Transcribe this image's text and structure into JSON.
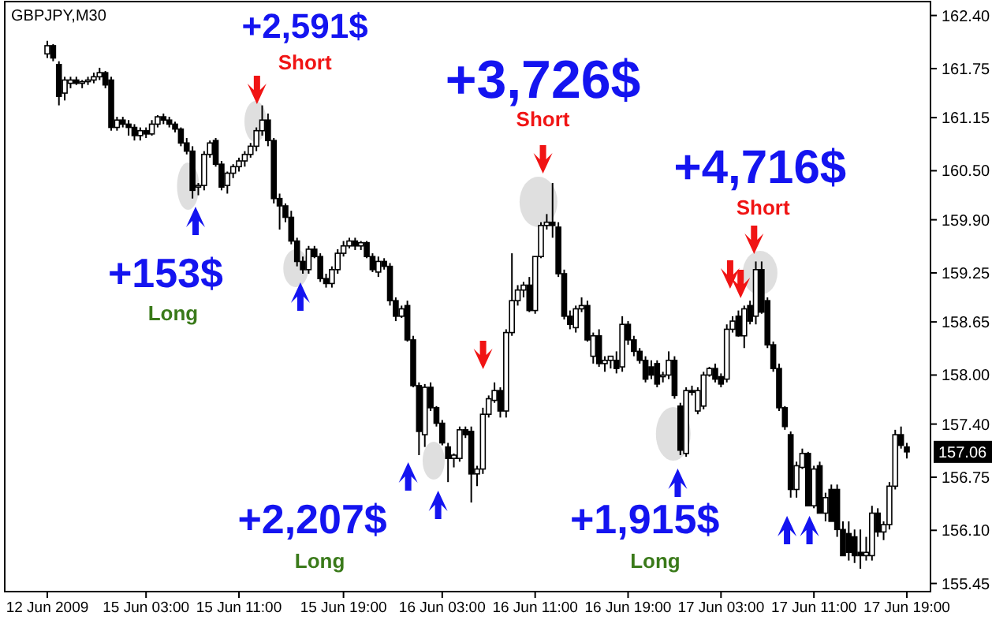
{
  "chart_data": {
    "type": "candlestick",
    "title": "GBPJPY,M30",
    "categories": [
      "12 Jun 2009",
      null,
      null,
      null,
      null,
      null,
      null,
      null,
      null,
      null,
      null,
      null,
      null,
      null,
      null,
      null,
      null,
      "15 Jun 03:00",
      null,
      null,
      null,
      null,
      null,
      null,
      null,
      null,
      null,
      null,
      null,
      null,
      null,
      null,
      null,
      "15 Jun 11:00",
      null,
      null,
      null,
      null,
      null,
      null,
      null,
      null,
      null,
      null,
      null,
      null,
      null,
      null,
      null,
      null,
      null,
      "15 Jun 19:00",
      null,
      null,
      null,
      null,
      null,
      null,
      null,
      null,
      null,
      null,
      null,
      null,
      null,
      null,
      null,
      null,
      "16 Jun 03:00",
      null,
      null,
      null,
      null,
      null,
      null,
      null,
      null,
      null,
      null,
      null,
      null,
      null,
      null,
      null,
      "16 Jun 11:00",
      null,
      null,
      null,
      null,
      null,
      null,
      null,
      null,
      null,
      null,
      null,
      null,
      null,
      null,
      null,
      "16 Jun 19:00",
      null,
      null,
      null,
      null,
      null,
      null,
      null,
      null,
      null,
      null,
      null,
      null,
      null,
      null,
      null,
      "17 Jun 03:00",
      null,
      null,
      null,
      null,
      null,
      null,
      null,
      null,
      null,
      null,
      null,
      null,
      null,
      null,
      null,
      "17 Jun 11:00",
      null,
      null,
      null,
      null,
      null,
      null,
      null,
      null,
      null,
      null,
      null,
      null,
      null,
      null,
      null,
      "17 Jun 19:00"
    ],
    "ohlc": [
      [
        161.93,
        162.09,
        161.88,
        162.03
      ],
      [
        162.03,
        162.05,
        161.84,
        161.88
      ],
      [
        161.8,
        161.84,
        161.3,
        161.41
      ],
      [
        161.45,
        161.65,
        161.36,
        161.61
      ],
      [
        161.57,
        161.65,
        161.51,
        161.61
      ],
      [
        161.61,
        161.65,
        161.55,
        161.57
      ],
      [
        161.57,
        161.61,
        161.51,
        161.59
      ],
      [
        161.59,
        161.65,
        161.55,
        161.61
      ],
      [
        161.61,
        161.7,
        161.57,
        161.65
      ],
      [
        161.65,
        161.76,
        161.61,
        161.7
      ],
      [
        161.7,
        161.72,
        161.51,
        161.55
      ],
      [
        161.61,
        161.65,
        160.99,
        161.03
      ],
      [
        161.03,
        161.16,
        160.99,
        161.12
      ],
      [
        161.12,
        161.16,
        161.03,
        161.07
      ],
      [
        161.07,
        161.12,
        160.93,
        161.03
      ],
      [
        161.03,
        161.07,
        160.87,
        160.93
      ],
      [
        160.93,
        161.03,
        160.87,
        160.99
      ],
      [
        160.99,
        161.03,
        160.9,
        160.95
      ],
      [
        160.95,
        161.12,
        160.93,
        161.07
      ],
      [
        161.07,
        161.18,
        161.03,
        161.16
      ],
      [
        161.16,
        161.2,
        161.07,
        161.12
      ],
      [
        161.12,
        161.16,
        161.03,
        161.07
      ],
      [
        161.07,
        161.1,
        160.97,
        161.01
      ],
      [
        161.01,
        161.03,
        160.8,
        160.84
      ],
      [
        160.84,
        160.9,
        160.7,
        160.74
      ],
      [
        160.74,
        160.8,
        160.16,
        160.26
      ],
      [
        160.3,
        160.35,
        160.2,
        160.32
      ],
      [
        160.32,
        160.74,
        160.26,
        160.7
      ],
      [
        160.7,
        160.87,
        160.66,
        160.84
      ],
      [
        160.87,
        160.9,
        160.55,
        160.58
      ],
      [
        160.58,
        160.62,
        160.26,
        160.3
      ],
      [
        160.32,
        160.49,
        160.22,
        160.47
      ],
      [
        160.47,
        160.58,
        160.41,
        160.55
      ],
      [
        160.55,
        160.66,
        160.49,
        160.62
      ],
      [
        160.62,
        160.74,
        160.55,
        160.7
      ],
      [
        160.7,
        160.84,
        160.66,
        160.8
      ],
      [
        160.8,
        161.03,
        160.74,
        160.99
      ],
      [
        160.99,
        161.3,
        160.93,
        161.12
      ],
      [
        161.12,
        161.2,
        160.8,
        160.87
      ],
      [
        160.87,
        160.9,
        160.1,
        160.16
      ],
      [
        160.16,
        160.22,
        159.78,
        160.07
      ],
      [
        160.07,
        160.1,
        159.87,
        159.93
      ],
      [
        159.93,
        160.01,
        159.6,
        159.64
      ],
      [
        159.64,
        159.68,
        159.33,
        159.39
      ],
      [
        159.39,
        159.45,
        159.24,
        159.29
      ],
      [
        159.29,
        159.58,
        159.24,
        159.54
      ],
      [
        159.54,
        159.58,
        159.43,
        159.45
      ],
      [
        159.45,
        159.49,
        159.14,
        159.18
      ],
      [
        159.18,
        159.24,
        159.07,
        159.12
      ],
      [
        159.12,
        159.33,
        159.07,
        159.29
      ],
      [
        159.29,
        159.54,
        159.24,
        159.49
      ],
      [
        159.49,
        159.64,
        159.45,
        159.58
      ],
      [
        159.58,
        159.68,
        159.55,
        159.64
      ],
      [
        159.64,
        159.68,
        159.53,
        159.58
      ],
      [
        159.58,
        159.64,
        159.53,
        159.62
      ],
      [
        159.62,
        159.64,
        159.43,
        159.45
      ],
      [
        159.45,
        159.49,
        159.26,
        159.29
      ],
      [
        159.26,
        159.45,
        159.2,
        159.39
      ],
      [
        159.39,
        159.43,
        159.29,
        159.33
      ],
      [
        159.33,
        159.37,
        158.85,
        158.91
      ],
      [
        158.91,
        158.95,
        158.66,
        158.72
      ],
      [
        158.72,
        158.85,
        158.7,
        158.81
      ],
      [
        158.85,
        158.91,
        158.41,
        158.43
      ],
      [
        158.43,
        158.48,
        157.85,
        157.87
      ],
      [
        157.87,
        157.91,
        157.02,
        157.31
      ],
      [
        157.27,
        157.89,
        157.12,
        157.85
      ],
      [
        157.85,
        157.91,
        157.56,
        157.6
      ],
      [
        157.6,
        157.62,
        157.37,
        157.41
      ],
      [
        157.41,
        157.45,
        157.14,
        157.17
      ],
      [
        157.12,
        157.17,
        156.69,
        156.98
      ],
      [
        156.98,
        157.04,
        156.87,
        157.02
      ],
      [
        156.98,
        157.37,
        156.94,
        157.33
      ],
      [
        157.33,
        157.37,
        157.23,
        157.27
      ],
      [
        157.31,
        157.37,
        156.44,
        156.79
      ],
      [
        156.79,
        156.89,
        156.64,
        156.85
      ],
      [
        156.85,
        157.6,
        156.79,
        157.52
      ],
      [
        157.52,
        157.75,
        157.48,
        157.71
      ],
      [
        157.69,
        157.91,
        157.66,
        157.81
      ],
      [
        157.81,
        157.85,
        157.48,
        157.56
      ],
      [
        157.56,
        158.56,
        157.48,
        158.52
      ],
      [
        158.52,
        159.49,
        158.48,
        158.91
      ],
      [
        158.91,
        159.1,
        158.85,
        159.04
      ],
      [
        159.04,
        159.14,
        158.95,
        159.1
      ],
      [
        159.1,
        159.2,
        158.77,
        158.79
      ],
      [
        158.79,
        159.45,
        158.75,
        159.45
      ],
      [
        159.45,
        159.87,
        159.43,
        159.83
      ],
      [
        159.83,
        159.97,
        159.78,
        159.87
      ],
      [
        159.87,
        160.35,
        159.68,
        159.83
      ],
      [
        159.81,
        159.87,
        159.2,
        159.24
      ],
      [
        159.24,
        159.29,
        158.68,
        158.72
      ],
      [
        158.72,
        158.79,
        158.56,
        158.62
      ],
      [
        158.58,
        158.85,
        158.52,
        158.81
      ],
      [
        158.81,
        158.95,
        158.77,
        158.85
      ],
      [
        158.85,
        158.91,
        158.41,
        158.43
      ],
      [
        158.23,
        158.52,
        158.14,
        158.48
      ],
      [
        158.48,
        158.56,
        158.1,
        158.14
      ],
      [
        158.14,
        158.23,
        158.04,
        158.18
      ],
      [
        158.18,
        158.23,
        158.08,
        158.23
      ],
      [
        158.18,
        158.29,
        158.02,
        158.08
      ],
      [
        158.1,
        158.72,
        158.04,
        158.62
      ],
      [
        158.62,
        158.66,
        158.37,
        158.43
      ],
      [
        158.43,
        158.48,
        158.23,
        158.29
      ],
      [
        158.29,
        158.33,
        158.14,
        158.18
      ],
      [
        158.18,
        158.23,
        157.91,
        157.95
      ],
      [
        158.1,
        158.18,
        157.95,
        158.0
      ],
      [
        158.14,
        158.18,
        157.85,
        157.89
      ],
      [
        157.98,
        158.04,
        157.91,
        158.0
      ],
      [
        158.0,
        158.29,
        157.95,
        158.18
      ],
      [
        158.18,
        158.23,
        157.71,
        157.75
      ],
      [
        157.62,
        157.66,
        157.02,
        157.08
      ],
      [
        157.04,
        157.85,
        157.0,
        157.81
      ],
      [
        157.81,
        157.87,
        157.75,
        157.79
      ],
      [
        157.56,
        157.85,
        157.52,
        157.81
      ],
      [
        157.62,
        158.04,
        157.58,
        158.0
      ],
      [
        158.0,
        158.1,
        157.98,
        158.08
      ],
      [
        158.08,
        158.14,
        157.91,
        157.95
      ],
      [
        157.98,
        158.02,
        157.85,
        157.89
      ],
      [
        157.95,
        158.62,
        157.91,
        158.56
      ],
      [
        158.56,
        158.72,
        158.52,
        158.66
      ],
      [
        158.72,
        158.79,
        158.47,
        158.48
      ],
      [
        158.48,
        158.85,
        158.33,
        158.81
      ],
      [
        158.85,
        158.91,
        158.62,
        158.66
      ],
      [
        158.72,
        159.39,
        158.62,
        159.29
      ],
      [
        159.29,
        159.39,
        158.75,
        158.77
      ],
      [
        158.91,
        158.95,
        158.33,
        158.37
      ],
      [
        158.37,
        158.41,
        158.04,
        158.08
      ],
      [
        158.08,
        158.14,
        157.56,
        157.6
      ],
      [
        157.6,
        157.62,
        157.33,
        157.37
      ],
      [
        157.27,
        157.31,
        156.5,
        156.6
      ],
      [
        156.6,
        156.94,
        156.5,
        156.89
      ],
      [
        156.87,
        157.1,
        156.85,
        157.04
      ],
      [
        157.04,
        157.06,
        156.4,
        156.4
      ],
      [
        156.4,
        156.89,
        156.37,
        156.85
      ],
      [
        156.89,
        156.94,
        156.31,
        156.31
      ],
      [
        156.31,
        156.56,
        156.21,
        156.5
      ],
      [
        156.6,
        156.66,
        156.21,
        156.21
      ],
      [
        156.6,
        156.66,
        156.02,
        156.11
      ],
      [
        156.11,
        156.21,
        155.79,
        155.79
      ],
      [
        156.06,
        156.21,
        155.73,
        155.83
      ],
      [
        156.02,
        156.11,
        155.7,
        155.79
      ],
      [
        155.83,
        156.11,
        155.63,
        155.79
      ],
      [
        155.79,
        156.02,
        155.73,
        155.83
      ],
      [
        155.79,
        156.4,
        155.73,
        156.31
      ],
      [
        156.31,
        156.37,
        156.02,
        156.08
      ],
      [
        156.08,
        156.21,
        155.98,
        156.17
      ],
      [
        156.17,
        156.69,
        156.11,
        156.64
      ],
      [
        156.64,
        157.33,
        156.6,
        157.27
      ],
      [
        157.27,
        157.37,
        157.1,
        157.14
      ],
      [
        157.12,
        157.17,
        156.98,
        157.06
      ]
    ],
    "ylim": [
      155.35,
      162.57
    ],
    "yticks": [
      155.45,
      {
        "value": 156.1,
        "label": "156.10"
      },
      156.75,
      {
        "value": 157.4,
        "label": "157.40"
      },
      {
        "value": 158,
        "label": "158.00"
      },
      158.65,
      159.25,
      {
        "value": 159.9,
        "label": "159.90"
      },
      {
        "value": 160.5,
        "label": "160.50"
      },
      161.15,
      161.75,
      {
        "value": 162.4,
        "label": "162.40"
      }
    ],
    "annotations": [
      "+2,591$",
      "Short",
      "+153$",
      "Long",
      "+3,726$",
      "Short",
      "+4,716$",
      "Short",
      "+2,207$",
      "Long",
      "+1,915$",
      "Long",
      "157.06"
    ]
  }
}
